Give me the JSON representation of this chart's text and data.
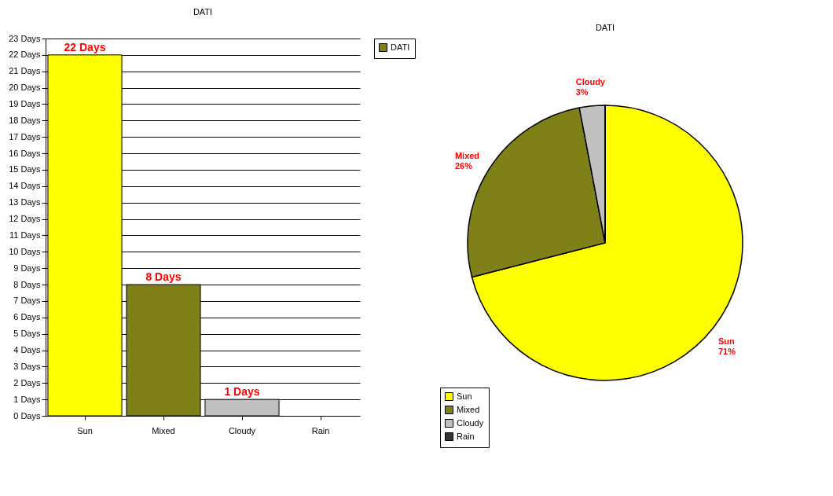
{
  "chart_data": [
    {
      "type": "bar",
      "title": "DATI",
      "categories": [
        "Sun",
        "Mixed",
        "Cloudy",
        "Rain"
      ],
      "series": [
        {
          "name": "DATI",
          "color": "#808019",
          "colors": [
            "#ffff00",
            "#808019",
            "#c0c0c0",
            "#333333"
          ],
          "values": [
            22,
            8,
            1,
            0
          ],
          "value_labels": [
            "22 Days",
            "8 Days",
            "1 Days",
            null
          ]
        }
      ],
      "ylim": [
        0,
        23
      ],
      "yticks": [
        {
          "value": 0,
          "label": "0 Days"
        },
        {
          "value": 1,
          "label": "1 Days"
        },
        {
          "value": 2,
          "label": "2 Days"
        },
        {
          "value": 3,
          "label": "3 Days"
        },
        {
          "value": 4,
          "label": "4 Days"
        },
        {
          "value": 5,
          "label": "5 Days"
        },
        {
          "value": 6,
          "label": "6 Days"
        },
        {
          "value": 7,
          "label": "7 Days"
        },
        {
          "value": 8,
          "label": "8 Days"
        },
        {
          "value": 9,
          "label": "9 Days"
        },
        {
          "value": 10,
          "label": "10 Days"
        },
        {
          "value": 11,
          "label": "11 Days"
        },
        {
          "value": 12,
          "label": "12 Days"
        },
        {
          "value": 13,
          "label": "13 Days"
        },
        {
          "value": 14,
          "label": "14 Days"
        },
        {
          "value": 15,
          "label": "15 Days"
        },
        {
          "value": 16,
          "label": "16 Days"
        },
        {
          "value": 17,
          "label": "17 Days"
        },
        {
          "value": 18,
          "label": "18 Days"
        },
        {
          "value": 19,
          "label": "19 Days"
        },
        {
          "value": 20,
          "label": "20 Days"
        },
        {
          "value": 21,
          "label": "21 Days"
        },
        {
          "value": 22,
          "label": "22 Days"
        },
        {
          "value": 23,
          "label": "23 Days"
        }
      ],
      "grid": "y",
      "legend": "right"
    },
    {
      "type": "pie",
      "title": "DATI",
      "categories": [
        "Sun",
        "Mixed",
        "Cloudy",
        "Rain"
      ],
      "values": [
        71,
        26,
        3,
        0
      ],
      "colors": [
        "#ffff00",
        "#808019",
        "#c0c0c0",
        "#333333"
      ],
      "value_labels": [
        "71%",
        "26%",
        "3%",
        null
      ],
      "legend": "bottom left"
    }
  ]
}
